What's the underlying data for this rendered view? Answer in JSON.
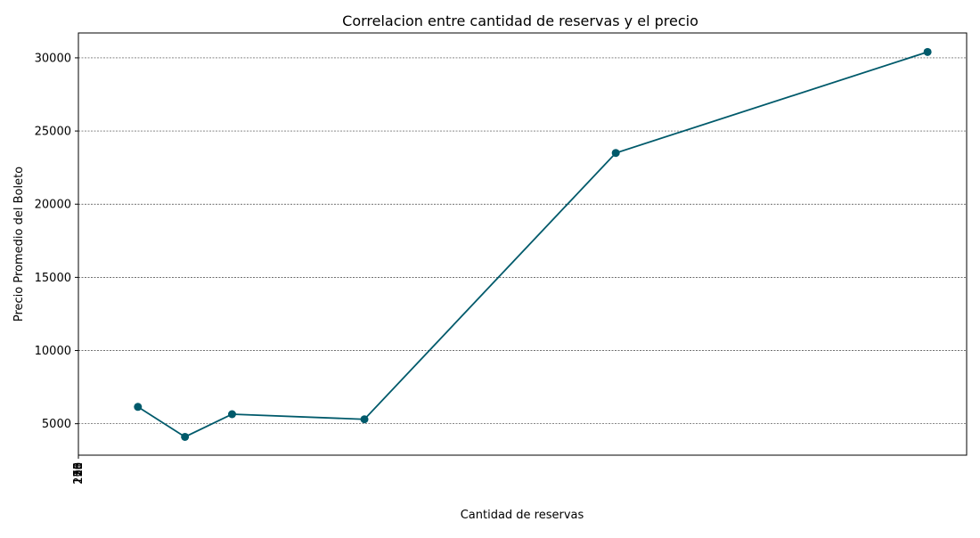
{
  "chart_data": {
    "type": "line",
    "title": "Correlacion entre cantidad de reservas y el precio",
    "xlabel": "Cantidad de reservas",
    "ylabel": "Precio Promedio del Boleto",
    "x_tick_labels_overlapping": [
      "1",
      "5",
      "10",
      "15",
      "20",
      "26",
      "30",
      "33",
      "55",
      "100",
      "178",
      "218"
    ],
    "y_ticks": [
      5000,
      10000,
      15000,
      20000,
      25000,
      30000
    ],
    "ylim": [
      2850,
      31700
    ],
    "xlim": [
      0,
      1000
    ],
    "grid": "horizontal-dashed",
    "line_color": "#005a6b",
    "points": [
      {
        "x": 67,
        "y": 6150
      },
      {
        "x": 120,
        "y": 4100
      },
      {
        "x": 173,
        "y": 5650
      },
      {
        "x": 322,
        "y": 5300
      },
      {
        "x": 605,
        "y": 23500
      },
      {
        "x": 956,
        "y": 30400
      }
    ]
  }
}
